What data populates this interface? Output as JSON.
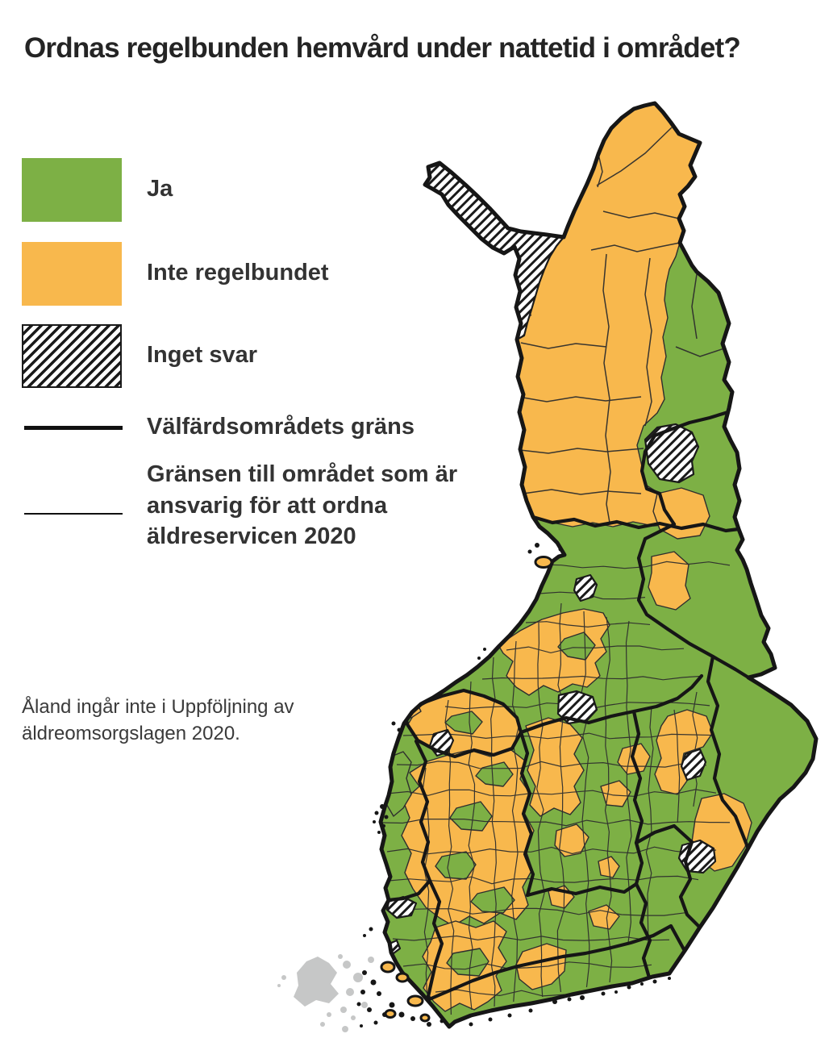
{
  "title": "Ordnas regelbunden hemvård under nattetid i området?",
  "legend": {
    "items": [
      {
        "id": "ja",
        "label": "Ja",
        "swatch": "fill",
        "color": "#7DB045"
      },
      {
        "id": "inte-regelbundet",
        "label": "Inte regelbundet",
        "swatch": "fill",
        "color": "#F8B84D"
      },
      {
        "id": "inget-svar",
        "label": "Inget svar",
        "swatch": "hatch"
      },
      {
        "id": "valfardsomradets-grans",
        "label": "Välfärdsområdets gräns",
        "swatch": "thick-line"
      },
      {
        "id": "ansvarigt-omrades-grans",
        "label": "Gränsen till området som är ansvarig för att ordna äldreservicen 2020",
        "swatch": "thin-line"
      }
    ]
  },
  "note": "Åland ingår inte i Uppföljning av äldreomsorgslagen 2020.",
  "map": {
    "country": "Finland",
    "categories": [
      "Ja",
      "Inte regelbundet",
      "Inget svar"
    ],
    "colors": {
      "yes_green": "#7DB045",
      "not_regular_orange": "#F8B84D",
      "no_answer_hatch": "#1A1A1A",
      "border_thick": "#161616",
      "border_thin": "#2E2E2E",
      "aland_gray": "#C6C7C7",
      "sea_white": "#FFFFFF"
    }
  }
}
